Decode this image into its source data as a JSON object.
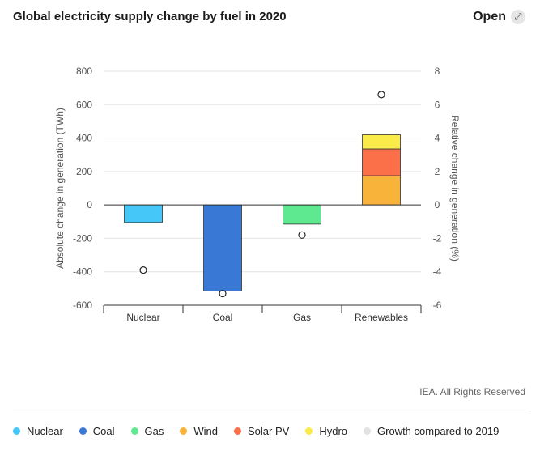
{
  "header": {
    "title": "Global electricity supply change by fuel in 2020",
    "open_label": "Open",
    "open_icon": "external-arrow-icon"
  },
  "credit": "IEA. All Rights Reserved",
  "colors": {
    "Nuclear": "#45c8f7",
    "Coal": "#3a78d6",
    "Gas": "#5ee88f",
    "Wind": "#f7b33a",
    "Solar PV": "#fb7048",
    "Hydro": "#fbeb4a",
    "Growth compared to 2019": "#e2e2e2"
  },
  "legend": [
    "Nuclear",
    "Coal",
    "Gas",
    "Wind",
    "Solar PV",
    "Hydro",
    "Growth compared to 2019"
  ],
  "chart_data": {
    "type": "bar",
    "stacked": true,
    "title": "Global electricity supply change by fuel in 2020",
    "categories": [
      "Nuclear",
      "Coal",
      "Gas",
      "Renewables"
    ],
    "ylabel": "Absolute change in generation (TWh)",
    "y2label": "Relative change in generation (%)",
    "ylim": [
      -600,
      800
    ],
    "y2lim": [
      -6,
      8
    ],
    "yticks": [
      "800",
      "600",
      "400",
      "200",
      "0",
      "-200",
      "-400",
      "-600"
    ],
    "y2ticks": [
      "8",
      "6",
      "4",
      "2",
      "0",
      "-2",
      "-4",
      "-6"
    ],
    "grid": true,
    "series": [
      {
        "name": "Nuclear",
        "values": [
          -105,
          0,
          0,
          0
        ]
      },
      {
        "name": "Coal",
        "values": [
          0,
          -515,
          0,
          0
        ]
      },
      {
        "name": "Gas",
        "values": [
          0,
          0,
          -115,
          0
        ]
      },
      {
        "name": "Wind",
        "values": [
          0,
          0,
          0,
          175
        ]
      },
      {
        "name": "Solar PV",
        "values": [
          0,
          0,
          0,
          160
        ]
      },
      {
        "name": "Hydro",
        "values": [
          0,
          0,
          0,
          85
        ]
      }
    ],
    "growth_series": {
      "name": "Growth compared to 2019",
      "axis": "right",
      "values": [
        -3.9,
        -5.3,
        -1.8,
        6.6
      ]
    }
  }
}
